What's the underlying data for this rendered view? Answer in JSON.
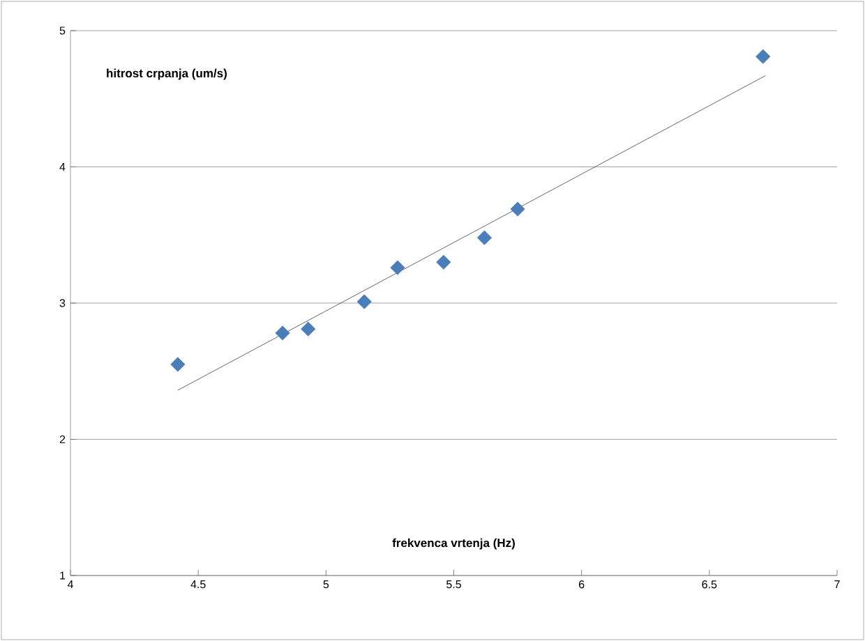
{
  "chart_data": {
    "type": "scatter",
    "xlabel": "frekvenca vrtenja (Hz)",
    "ylabel": "hitrost crpanja (um/s)",
    "xlim": [
      4,
      7
    ],
    "ylim": [
      1,
      5
    ],
    "xticks": [
      4,
      4.5,
      5,
      5.5,
      6,
      6.5,
      7
    ],
    "yticks": [
      1,
      2,
      3,
      4,
      5
    ],
    "grid": "y",
    "series": [
      {
        "marker": "diamond",
        "color": "#4a7ebb",
        "x": [
          4.42,
          4.83,
          4.93,
          5.15,
          5.28,
          5.46,
          5.62,
          5.75,
          6.71
        ],
        "values": [
          2.55,
          2.78,
          2.81,
          3.01,
          3.26,
          3.3,
          3.48,
          3.69,
          4.81
        ]
      },
      {
        "type": "line",
        "color": "#404040",
        "x": [
          4.42,
          6.72
        ],
        "values": [
          2.36,
          4.67
        ]
      }
    ]
  }
}
